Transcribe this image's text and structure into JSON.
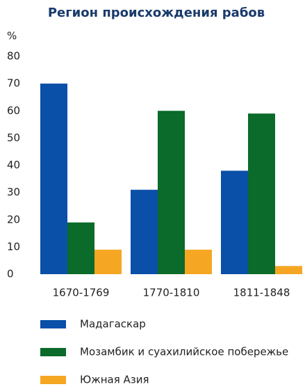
{
  "chart_data": {
    "type": "bar",
    "title": "Регион происхождения рабов",
    "y_label": "%",
    "categories": [
      "1670-1769",
      "1770-1810",
      "1811-1848"
    ],
    "series": [
      {
        "name": "Мадагаскар",
        "color": "#0a4fa8",
        "values": [
          70,
          31,
          38
        ]
      },
      {
        "name": "Мозамбик и суахилийское побережье",
        "color": "#0a6b2a",
        "values": [
          19,
          60,
          59
        ]
      },
      {
        "name": "Южная Азия",
        "color": "#f5a623",
        "values": [
          9,
          9,
          3
        ]
      }
    ],
    "ylim": [
      0,
      80
    ],
    "yticks": [
      0,
      10,
      20,
      30,
      40,
      50,
      60,
      70,
      80
    ],
    "grid": false,
    "legend": "bottom"
  }
}
